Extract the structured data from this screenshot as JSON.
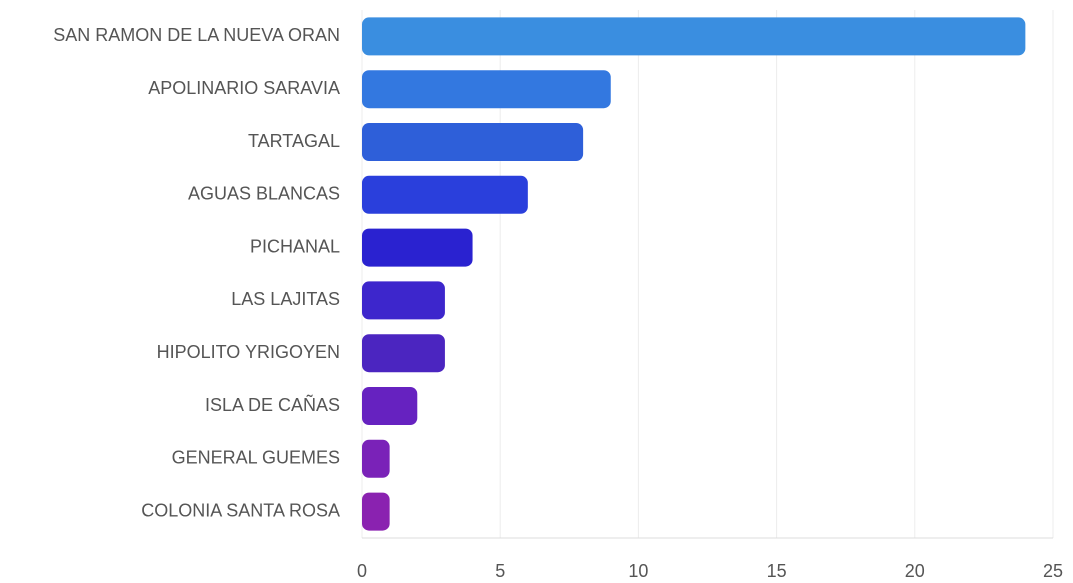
{
  "chart_data": {
    "type": "barh",
    "categories": [
      "SAN RAMON DE LA NUEVA ORAN",
      "APOLINARIO SARAVIA",
      "TARTAGAL",
      "AGUAS BLANCAS",
      "PICHANAL",
      "LAS LAJITAS",
      "HIPOLITO YRIGOYEN",
      "ISLA DE CAÑAS",
      "GENERAL GUEMES",
      "COLONIA SANTA ROSA"
    ],
    "values": [
      24,
      9,
      8,
      6,
      4,
      3,
      3,
      2,
      1,
      1
    ],
    "colors": [
      "#3a8ee0",
      "#3378e0",
      "#2e5fd9",
      "#2a3fdc",
      "#2a22d0",
      "#3d26cc",
      "#4b25c0",
      "#6622c0",
      "#7a22b8",
      "#8a22b0"
    ],
    "xlim": [
      0,
      25
    ],
    "xticks": [
      0,
      5,
      10,
      15,
      20,
      25
    ],
    "grid": true
  }
}
